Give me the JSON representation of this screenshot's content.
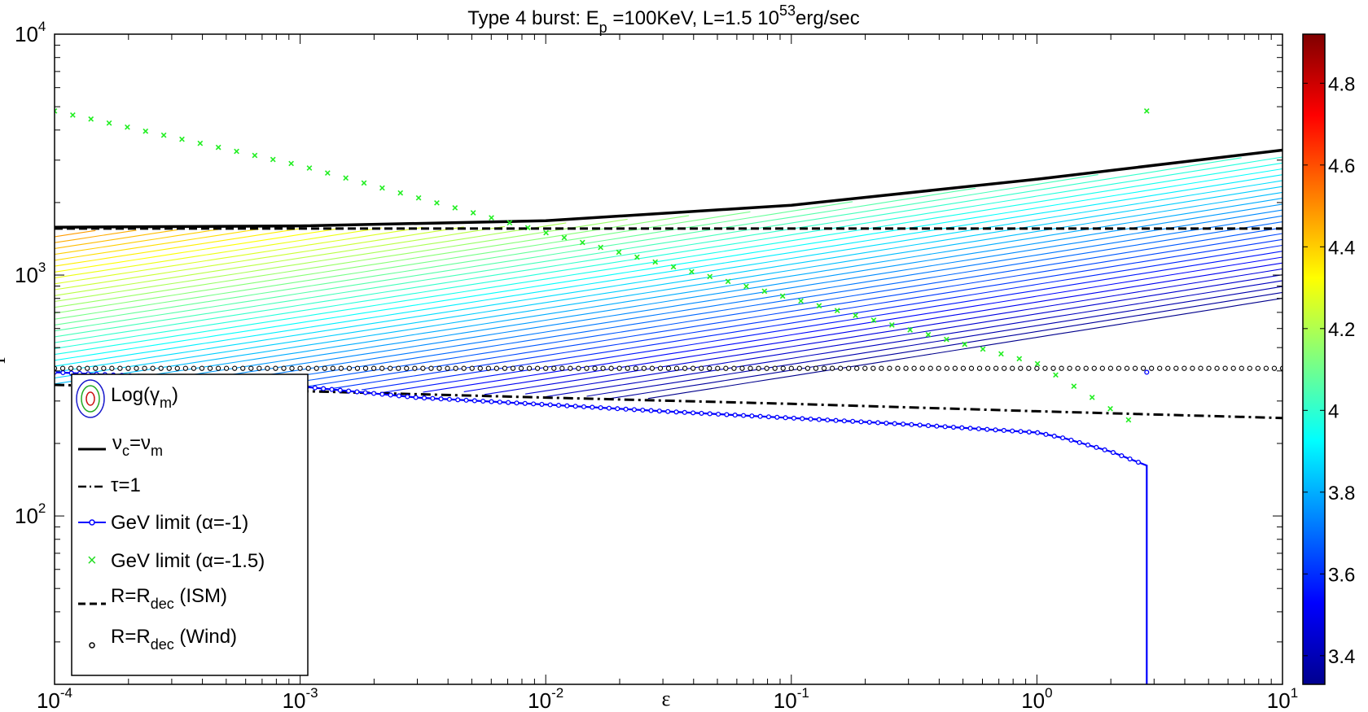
{
  "chart_data": {
    "type": "line",
    "title": "Type 4 burst: E_p =100KeV, L=1.5 10^53 erg/sec",
    "title_parts": {
      "pre": "Type 4 burst: E",
      "sub": "p",
      "mid": " =100KeV, L=1.5 10",
      "sup": "53",
      "post": "erg/sec"
    },
    "xlabel": "ε",
    "ylabel": "Γ",
    "x_scale": "log",
    "y_scale": "log",
    "xlim": [
      0.0001,
      10
    ],
    "ylim": [
      20,
      10000
    ],
    "x_ticks": [
      {
        "base": "10",
        "exp": "-4"
      },
      {
        "base": "10",
        "exp": "-3"
      },
      {
        "base": "10",
        "exp": "-2"
      },
      {
        "base": "10",
        "exp": "-1"
      },
      {
        "base": "10",
        "exp": "0"
      },
      {
        "base": "10",
        "exp": "1"
      }
    ],
    "y_ticks": [
      {
        "base": "10",
        "exp": "2"
      },
      {
        "base": "10",
        "exp": "3"
      },
      {
        "base": "10",
        "exp": "4"
      }
    ],
    "grid": false,
    "legend_position": "bottom-left",
    "colorbar": {
      "label": "Log(γm)",
      "range": [
        3.33,
        4.92
      ],
      "ticks": [
        "3.4",
        "3.6",
        "3.8",
        "4",
        "4.2",
        "4.4",
        "4.6",
        "4.8"
      ]
    },
    "contour_levels": {
      "min": 3.35,
      "max": 4.9,
      "count": 60
    },
    "series": [
      {
        "name": "νc=νm",
        "style": "solid-black",
        "x": [
          0.0001,
          0.001,
          0.01,
          0.1,
          1,
          10
        ],
        "y": [
          1580,
          1600,
          1680,
          1950,
          2500,
          3300
        ]
      },
      {
        "name": "τ=1",
        "style": "dashdot-black",
        "x": [
          0.0001,
          0.001,
          0.01,
          0.1,
          1,
          10
        ],
        "y": [
          350,
          330,
          310,
          292,
          272,
          255
        ]
      },
      {
        "name": "GeV limit (α=-1)",
        "style": "blue-dots",
        "x": [
          0.0001,
          0.0003,
          0.001,
          0.003,
          0.01,
          0.03,
          0.1,
          0.3,
          1,
          1.3,
          2,
          2.8,
          2.8,
          2.8
        ],
        "y": [
          395,
          375,
          345,
          310,
          290,
          272,
          255,
          240,
          222,
          210,
          185,
          162,
          60,
          20
        ]
      },
      {
        "name": "GeV limit (α=-1.5)",
        "style": "green-x",
        "x": [
          0.0001,
          0.001,
          0.01,
          0.1,
          1,
          2.8
        ],
        "y": [
          4800,
          2850,
          1500,
          800,
          430,
          225
        ]
      },
      {
        "name": "R=Rdec (ISM)",
        "style": "dashed-black",
        "x": [
          0.0001,
          10
        ],
        "y": [
          1560,
          1560
        ]
      },
      {
        "name": "R=Rdec (Wind)",
        "style": "circles-black",
        "x": [
          0.0001,
          10
        ],
        "y": [
          410,
          410
        ]
      }
    ]
  },
  "legend": {
    "items": [
      {
        "main": "Log(γ",
        "sub": "m",
        "after": ")"
      },
      {
        "main": "ν",
        "sub": "c",
        "mid": "=ν",
        "sub2": "m"
      },
      {
        "main": "τ=1"
      },
      {
        "main": "GeV limit (α=-1)"
      },
      {
        "main": "GeV limit (α=-1.5)"
      },
      {
        "main": "R=R",
        "sub": "dec",
        "after": " (ISM)"
      },
      {
        "main": "R=R",
        "sub": "dec",
        "after": " (Wind)"
      }
    ]
  }
}
